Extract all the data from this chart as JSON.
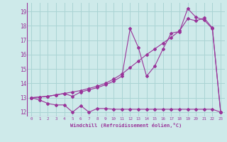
{
  "xlabel": "Windchill (Refroidissement éolien,°C)",
  "background_color": "#ceeaea",
  "grid_color": "#aad4d4",
  "line_color": "#993399",
  "xlim": [
    -0.5,
    23.5
  ],
  "ylim": [
    11.7,
    19.6
  ],
  "yticks": [
    12,
    13,
    14,
    15,
    16,
    17,
    18,
    19
  ],
  "xticks": [
    0,
    1,
    2,
    3,
    4,
    5,
    6,
    7,
    8,
    9,
    10,
    11,
    12,
    13,
    14,
    15,
    16,
    17,
    18,
    19,
    20,
    21,
    22,
    23
  ],
  "series1_x": [
    0,
    1,
    2,
    3,
    4,
    5,
    6,
    7,
    8,
    9,
    10,
    11,
    12,
    13,
    14,
    15,
    16,
    17,
    18,
    19,
    20,
    21,
    22,
    23
  ],
  "series1_y": [
    13.0,
    12.85,
    12.6,
    12.5,
    12.5,
    12.0,
    12.45,
    12.0,
    12.25,
    12.25,
    12.2,
    12.2,
    12.2,
    12.2,
    12.2,
    12.2,
    12.2,
    12.2,
    12.2,
    12.2,
    12.2,
    12.2,
    12.2,
    12.0
  ],
  "series2_x": [
    0,
    1,
    2,
    3,
    4,
    5,
    6,
    7,
    8,
    9,
    10,
    11,
    12,
    13,
    14,
    15,
    16,
    17,
    18,
    19,
    20,
    21,
    22,
    23
  ],
  "series2_y": [
    13.0,
    13.05,
    13.1,
    13.2,
    13.3,
    13.1,
    13.4,
    13.55,
    13.7,
    13.9,
    14.15,
    14.5,
    17.8,
    16.5,
    14.5,
    15.2,
    16.4,
    17.5,
    17.6,
    19.2,
    18.6,
    18.4,
    17.8,
    12.0
  ],
  "series3_x": [
    0,
    1,
    2,
    3,
    4,
    5,
    6,
    7,
    8,
    9,
    10,
    11,
    12,
    13,
    14,
    15,
    16,
    17,
    18,
    19,
    20,
    21,
    22,
    23
  ],
  "series3_y": [
    13.0,
    13.05,
    13.1,
    13.2,
    13.3,
    13.4,
    13.5,
    13.65,
    13.8,
    14.0,
    14.3,
    14.65,
    15.1,
    15.55,
    16.0,
    16.4,
    16.8,
    17.2,
    17.65,
    18.5,
    18.35,
    18.55,
    17.85,
    12.0
  ]
}
